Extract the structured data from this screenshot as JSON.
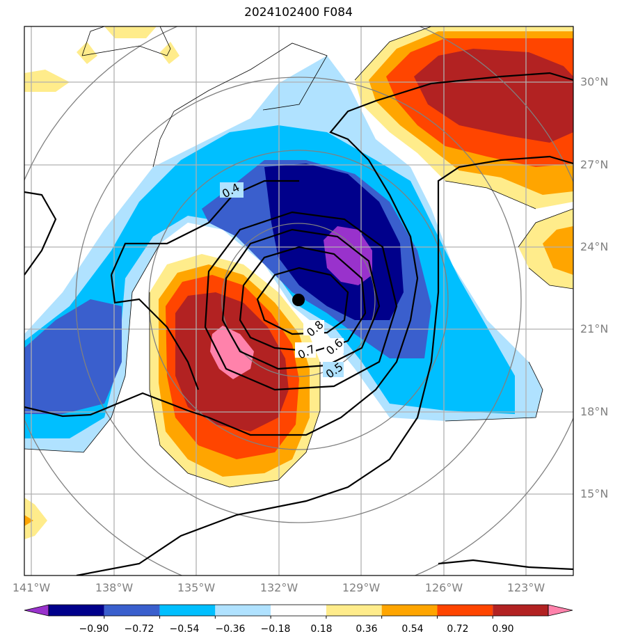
{
  "title": "2024102400 F084",
  "lat_labels": [
    "30°N",
    "27°N",
    "24°N",
    "21°N",
    "18°N",
    "15°N"
  ],
  "lon_labels": [
    "141°W",
    "138°W",
    "135°W",
    "132°W",
    "129°W",
    "126°W",
    "123°W"
  ],
  "colorbar": {
    "ticks": [
      "−0.90",
      "−0.72",
      "−0.54",
      "−0.36",
      "−0.18",
      "0.18",
      "0.36",
      "0.54",
      "0.72",
      "0.90"
    ],
    "colors": [
      "#9932CC",
      "#00008B",
      "#3A5FCD",
      "#00BFFF",
      "#B0E2FF",
      "#FFFFFF",
      "#FFEC8B",
      "#FFA500",
      "#FF4500",
      "#B22222",
      "#FF82AB"
    ]
  },
  "contour_labels": [
    "0.4",
    "0.5",
    "0.6",
    "0.7",
    "0.8"
  ],
  "storm_center": {
    "lat": 22.0,
    "lon": -131.3
  }
}
